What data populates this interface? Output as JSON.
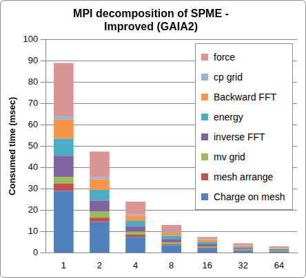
{
  "chart_data": {
    "type": "bar",
    "title": [
      "MPI decomposition of SPME -",
      "Improved (GAIA2)"
    ],
    "y_label": "Consumed time (msec)",
    "categories": [
      "1",
      "2",
      "4",
      "8",
      "16",
      "32",
      "64"
    ],
    "series": [
      {
        "name": "Charge on mesh",
        "color": "#4f81bd",
        "values": [
          29,
          14.5,
          7.5,
          3.5,
          2,
          1,
          0.6
        ]
      },
      {
        "name": "mesh arrange",
        "color": "#c0504d",
        "values": [
          3.5,
          2,
          1,
          0.7,
          0.5,
          0.3,
          0.2
        ]
      },
      {
        "name": "mv grid",
        "color": "#9bbb59",
        "values": [
          3,
          3,
          1.5,
          0.8,
          0.5,
          0.3,
          0.2
        ]
      },
      {
        "name": "inverse FFT",
        "color": "#8064a2",
        "values": [
          10,
          5,
          2.5,
          1.5,
          1,
          0.6,
          0.4
        ]
      },
      {
        "name": "energy",
        "color": "#4bacc6",
        "values": [
          8,
          5,
          2.5,
          1.5,
          1,
          0.6,
          0.4
        ]
      },
      {
        "name": "Backward FFT",
        "color": "#f79646",
        "values": [
          9,
          5,
          2.5,
          1.5,
          1,
          0.6,
          0.4
        ]
      },
      {
        "name": "cp grid",
        "color": "#95b3d7",
        "values": [
          1.5,
          1,
          0.5,
          0.5,
          0.3,
          0.2,
          0.2
        ]
      },
      {
        "name": "force",
        "color": "#d99694",
        "values": [
          25,
          12,
          6,
          3,
          1.2,
          0.9,
          0.6
        ]
      }
    ],
    "stacked": true,
    "ylim": [
      0,
      100
    ],
    "yticks": [
      0,
      10,
      20,
      30,
      40,
      50,
      60,
      70,
      80,
      90,
      100
    ],
    "grid": true,
    "legend": "upper right"
  }
}
